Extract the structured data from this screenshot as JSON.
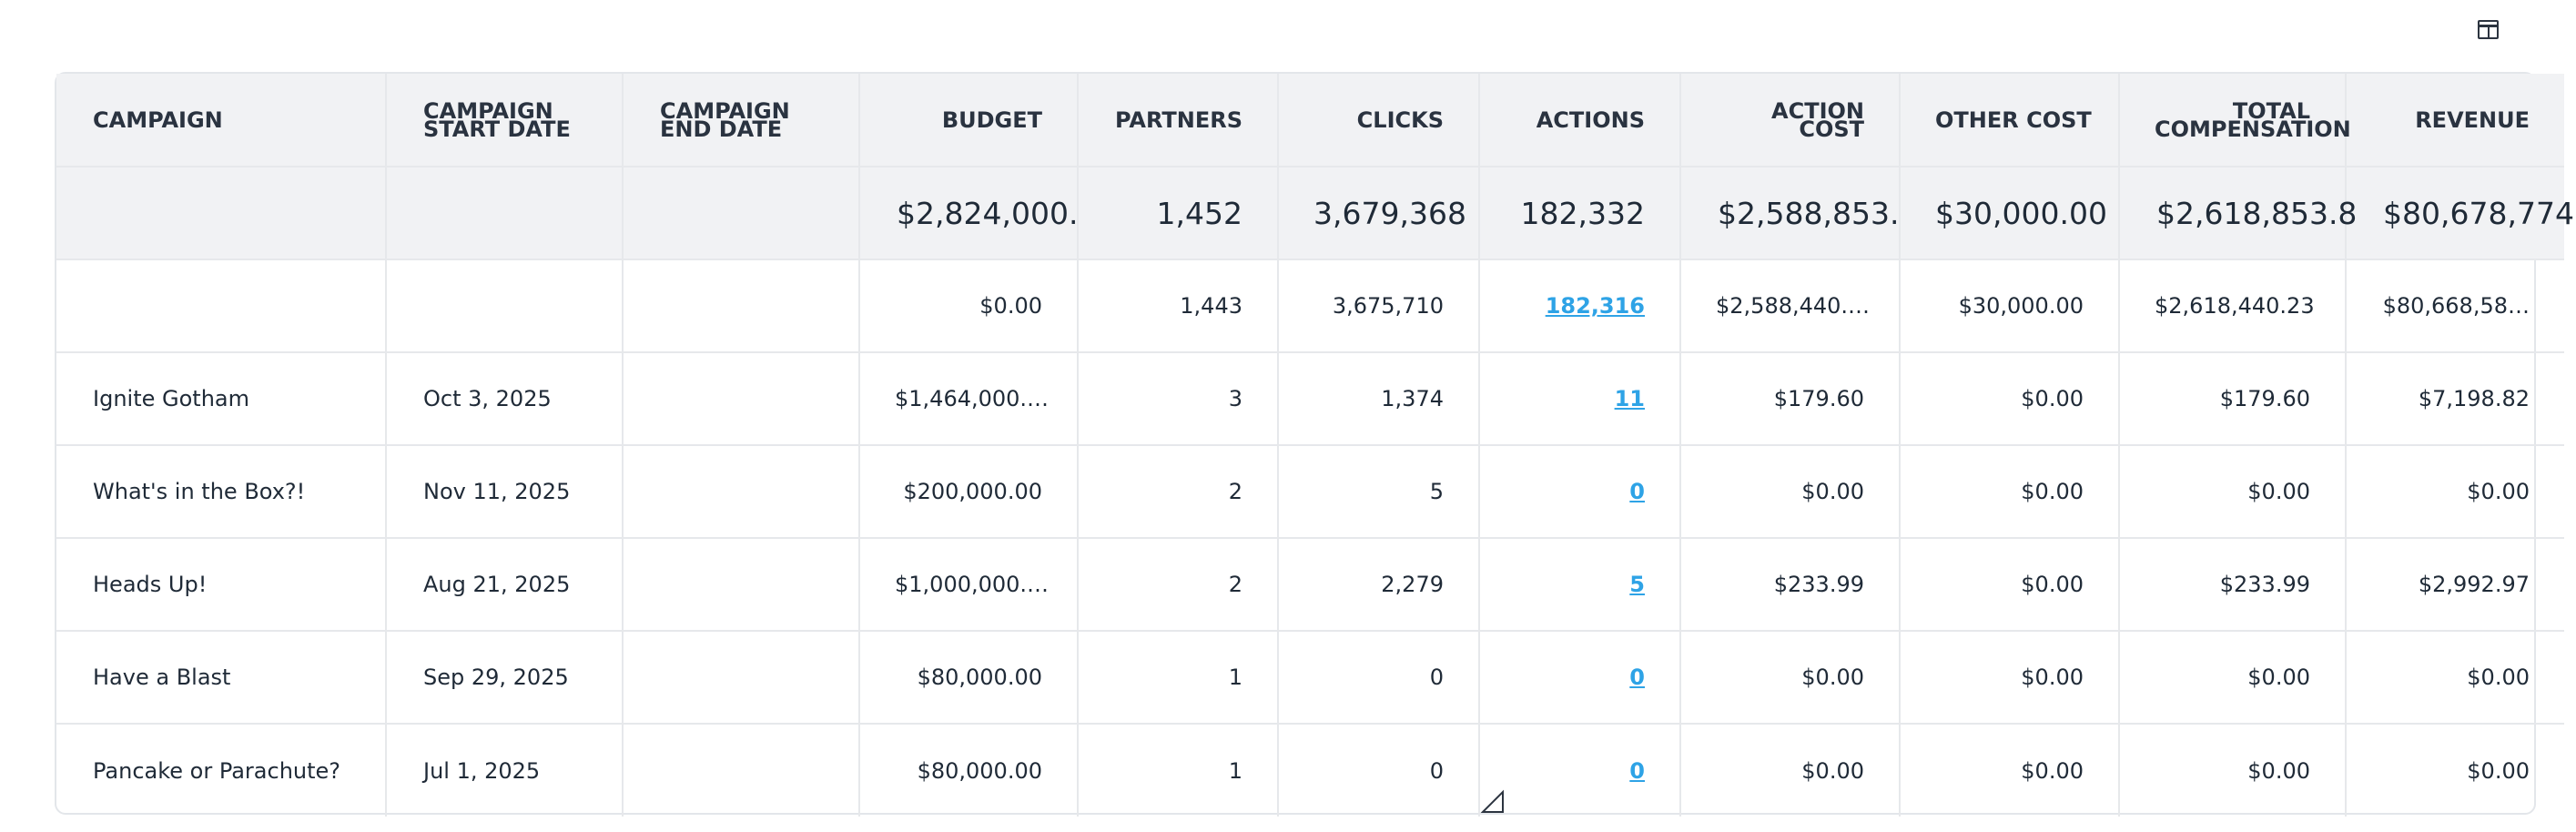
{
  "toolbar": {
    "columns_icon": "columns-layout-icon"
  },
  "columns": [
    {
      "key": "campaign",
      "label_lines": [
        "CAMPAIGN"
      ]
    },
    {
      "key": "start",
      "label_lines": [
        "CAMPAIGN",
        "START DATE"
      ]
    },
    {
      "key": "end",
      "label_lines": [
        "CAMPAIGN",
        "END DATE"
      ]
    },
    {
      "key": "budget",
      "label_lines": [
        "BUDGET"
      ]
    },
    {
      "key": "partners",
      "label_lines": [
        "PARTNERS"
      ]
    },
    {
      "key": "clicks",
      "label_lines": [
        "CLICKS"
      ]
    },
    {
      "key": "actions",
      "label_lines": [
        "ACTIONS"
      ]
    },
    {
      "key": "action_cost",
      "label_lines": [
        "ACTION",
        "COST"
      ]
    },
    {
      "key": "other_cost",
      "label_lines": [
        "OTHER COST"
      ]
    },
    {
      "key": "total_comp",
      "label_lines": [
        "TOTAL",
        "COMPENSATION"
      ]
    },
    {
      "key": "revenue",
      "label_lines": [
        "REVENUE"
      ]
    }
  ],
  "totals": {
    "budget": "$2,824,000.",
    "partners": "1,452",
    "clicks": "3,679,368",
    "actions": "182,332",
    "action_cost": "$2,588,853.",
    "other_cost": "$30,000.00",
    "total_comp": "$2,618,853.8",
    "revenue": "$80,678,774"
  },
  "rows": [
    {
      "campaign": "",
      "start": "",
      "end": "",
      "budget": "$0.00",
      "partners": "1,443",
      "clicks": "3,675,710",
      "actions": "182,316",
      "action_cost": "$2,588,440.…",
      "other_cost": "$30,000.00",
      "total_comp": "$2,618,440.23",
      "revenue": "$80,668,58…"
    },
    {
      "campaign": "Ignite Gotham",
      "start": "Oct 3, 2025",
      "end": "",
      "budget": "$1,464,000.…",
      "partners": "3",
      "clicks": "1,374",
      "actions": "11",
      "action_cost": "$179.60",
      "other_cost": "$0.00",
      "total_comp": "$179.60",
      "revenue": "$7,198.82"
    },
    {
      "campaign": "What's in the Box?!",
      "start": "Nov 11, 2025",
      "end": "",
      "budget": "$200,000.00",
      "partners": "2",
      "clicks": "5",
      "actions": "0",
      "action_cost": "$0.00",
      "other_cost": "$0.00",
      "total_comp": "$0.00",
      "revenue": "$0.00"
    },
    {
      "campaign": "Heads Up!",
      "start": "Aug 21, 2025",
      "end": "",
      "budget": "$1,000,000.…",
      "partners": "2",
      "clicks": "2,279",
      "actions": "5",
      "action_cost": "$233.99",
      "other_cost": "$0.00",
      "total_comp": "$233.99",
      "revenue": "$2,992.97"
    },
    {
      "campaign": "Have a Blast",
      "start": "Sep 29, 2025",
      "end": "",
      "budget": "$80,000.00",
      "partners": "1",
      "clicks": "0",
      "actions": "0",
      "action_cost": "$0.00",
      "other_cost": "$0.00",
      "total_comp": "$0.00",
      "revenue": "$0.00"
    },
    {
      "campaign": "Pancake or Parachute?",
      "start": "Jul 1, 2025",
      "end": "",
      "budget": "$80,000.00",
      "partners": "1",
      "clicks": "0",
      "actions": "0",
      "action_cost": "$0.00",
      "other_cost": "$0.00",
      "total_comp": "$0.00",
      "revenue": "$0.00"
    }
  ],
  "colors": {
    "link": "#2ea3e6",
    "header_bg": "#f1f2f4",
    "border": "#e6e8eb"
  }
}
